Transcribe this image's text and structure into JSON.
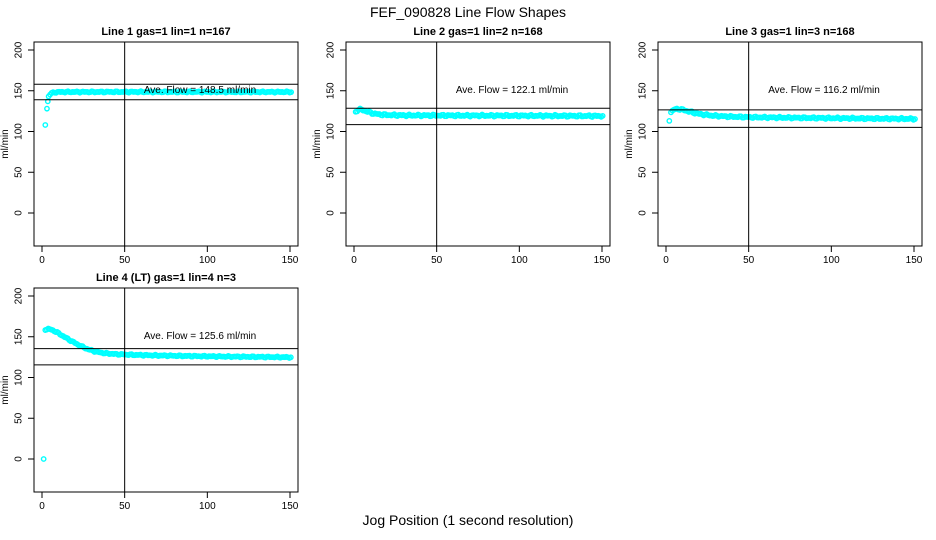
{
  "figure": {
    "title": "FEF_090828  Line Flow Shapes",
    "xlabel": "Jog Position (1 second resolution)",
    "background_color": "#ffffff",
    "point_color": "#00ffff",
    "axis_color": "#000000"
  },
  "chart_data": [
    {
      "type": "scatter",
      "title": "Line 1 gas=1 lin=1 n=167",
      "ylabel": "ml/min",
      "n": 167,
      "ave_flow": 148.5,
      "ave_flow_label": "Ave. Flow =  148.5  ml/min",
      "xlim": [
        0,
        150
      ],
      "ylim": [
        0,
        200
      ],
      "x_ticks": [
        0,
        50,
        100,
        150
      ],
      "y_ticks": [
        0,
        50,
        100,
        150,
        200
      ],
      "vline_x": 50,
      "hlines": [
        158,
        139
      ],
      "grid": {
        "row": 0,
        "col": 0
      },
      "outliers": [
        [
          2,
          108
        ],
        [
          3,
          128
        ],
        [
          3.5,
          137
        ]
      ],
      "curve_keypoints": [
        [
          4,
          143
        ],
        [
          5,
          145.8
        ],
        [
          6,
          147.3
        ],
        [
          8,
          148.2
        ],
        [
          12,
          148.5
        ],
        [
          60,
          148.6
        ],
        [
          151,
          148.5
        ]
      ],
      "noise": 0.9,
      "x_end": 151
    },
    {
      "type": "scatter",
      "title": "Line 2 gas=1 lin=2 n=168",
      "ylabel": "ml/min",
      "n": 168,
      "ave_flow": 122.1,
      "ave_flow_label": "Ave. Flow =  122.1  ml/min",
      "xlim": [
        0,
        150
      ],
      "ylim": [
        0,
        200
      ],
      "x_ticks": [
        0,
        50,
        100,
        150
      ],
      "y_ticks": [
        0,
        50,
        100,
        150,
        200
      ],
      "vline_x": 50,
      "hlines": [
        128.5,
        108.5
      ],
      "grid": {
        "row": 0,
        "col": 1
      },
      "outliers": [],
      "curve_keypoints": [
        [
          1,
          124
        ],
        [
          2,
          126
        ],
        [
          3,
          127
        ],
        [
          4,
          127
        ],
        [
          6,
          126
        ],
        [
          8,
          124.5
        ],
        [
          11,
          122.5
        ],
        [
          15,
          121
        ],
        [
          20,
          120.3
        ],
        [
          30,
          119.8
        ],
        [
          60,
          119.6
        ],
        [
          100,
          119.4
        ],
        [
          151,
          119
        ]
      ],
      "noise": 1.3,
      "x_end": 151
    },
    {
      "type": "scatter",
      "title": "Line 3 gas=1 lin=3 n=168",
      "ylabel": "ml/min",
      "n": 168,
      "ave_flow": 116.2,
      "ave_flow_label": "Ave. Flow =  116.2  ml/min",
      "xlim": [
        0,
        150
      ],
      "ylim": [
        0,
        200
      ],
      "x_ticks": [
        0,
        50,
        100,
        150
      ],
      "y_ticks": [
        0,
        50,
        100,
        150,
        200
      ],
      "vline_x": 50,
      "hlines": [
        126.5,
        105
      ],
      "grid": {
        "row": 0,
        "col": 2
      },
      "outliers": [
        [
          2,
          113
        ]
      ],
      "curve_keypoints": [
        [
          3,
          124
        ],
        [
          5,
          127
        ],
        [
          7,
          127.8
        ],
        [
          10,
          126.8
        ],
        [
          14,
          124.5
        ],
        [
          20,
          121.5
        ],
        [
          28,
          119.5
        ],
        [
          38,
          118.3
        ],
        [
          50,
          117.6
        ],
        [
          70,
          117
        ],
        [
          100,
          116.4
        ],
        [
          130,
          115.8
        ],
        [
          151,
          115.5
        ]
      ],
      "noise": 1.2,
      "x_end": 151
    },
    {
      "type": "scatter",
      "title": "Line 4 (LT) gas=1 lin=4 n=3",
      "ylabel": "ml/min",
      "n": 3,
      "ave_flow": 125.6,
      "ave_flow_label": "Ave. Flow =  125.6  ml/min",
      "xlim": [
        0,
        150
      ],
      "ylim": [
        0,
        200
      ],
      "x_ticks": [
        0,
        50,
        100,
        150
      ],
      "y_ticks": [
        0,
        50,
        100,
        150,
        200
      ],
      "vline_x": 50,
      "hlines": [
        135.5,
        115.5
      ],
      "grid": {
        "row": 1,
        "col": 0
      },
      "outliers": [
        [
          1,
          0
        ]
      ],
      "curve_keypoints": [
        [
          2,
          159
        ],
        [
          4,
          159.5
        ],
        [
          6,
          158.5
        ],
        [
          9,
          155.5
        ],
        [
          13,
          150.5
        ],
        [
          18,
          144.5
        ],
        [
          23,
          139
        ],
        [
          28,
          134.5
        ],
        [
          33,
          131.5
        ],
        [
          38,
          129.8
        ],
        [
          45,
          128.6
        ],
        [
          55,
          127.8
        ],
        [
          70,
          127
        ],
        [
          90,
          126.3
        ],
        [
          115,
          125.6
        ],
        [
          135,
          125.2
        ],
        [
          151,
          124.8
        ]
      ],
      "noise": 0.9,
      "x_end": 151
    }
  ]
}
